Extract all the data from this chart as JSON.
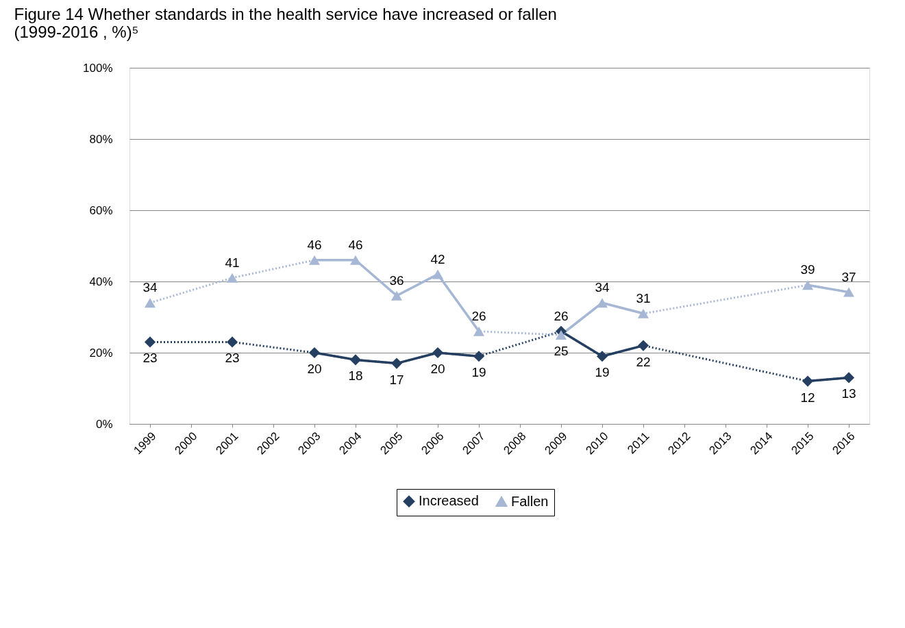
{
  "chart_data": {
    "type": "line",
    "title": [
      "Figure 14  Whether standards in the health service have increased or fallen",
      "(1999-2016 , %)⁵"
    ],
    "categories": [
      "1999",
      "2000",
      "2001",
      "2002",
      "2003",
      "2004",
      "2005",
      "2006",
      "2007",
      "2008",
      "2009",
      "2010",
      "2011",
      "2012",
      "2013",
      "2014",
      "2015",
      "2016"
    ],
    "series": [
      {
        "name": "Increased",
        "color": "#243f60",
        "marker": "diamond",
        "line_style": "dotted",
        "values": [
          23,
          null,
          23,
          null,
          20,
          18,
          17,
          20,
          19,
          null,
          26,
          19,
          22,
          null,
          null,
          null,
          12,
          13
        ]
      },
      {
        "name": "Fallen",
        "color": "#a6b7d6",
        "marker": "triangle",
        "line_style": "dotted",
        "values": [
          34,
          null,
          41,
          null,
          46,
          46,
          36,
          42,
          26,
          null,
          25,
          34,
          31,
          null,
          null,
          null,
          39,
          37
        ]
      }
    ],
    "ylim": [
      0,
      100
    ],
    "yticks": [
      {
        "value": 0,
        "label": "0%"
      },
      {
        "value": 20,
        "label": "20%"
      },
      {
        "value": 40,
        "label": "40%"
      },
      {
        "value": 60,
        "label": "60%"
      },
      {
        "value": 80,
        "label": "80%"
      },
      {
        "value": 100,
        "label": "100%"
      }
    ],
    "grid": "y",
    "legend": "bottom",
    "data_labels": true
  }
}
